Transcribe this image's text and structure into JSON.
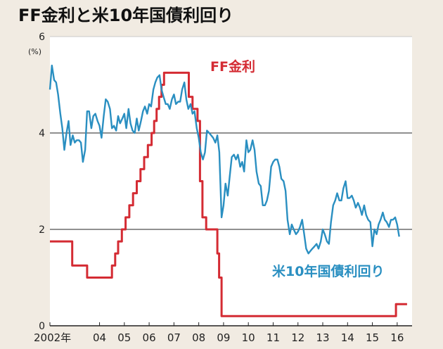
{
  "chart_data": {
    "type": "line",
    "title": "FF金利と米10年国債利回り",
    "unit_label": "(%)",
    "ylim": [
      0,
      6
    ],
    "y_ticks": [
      {
        "value": 0,
        "label": "0"
      },
      {
        "value": 2,
        "label": "2"
      },
      {
        "value": 4,
        "label": "4"
      },
      {
        "value": 6,
        "label": "6"
      }
    ],
    "xlim": [
      2002.0,
      2016.6
    ],
    "x_ticks": [
      {
        "value": 2002.0,
        "label": "2002年"
      },
      {
        "value": 2004.0,
        "label": "04"
      },
      {
        "value": 2005.0,
        "label": "05"
      },
      {
        "value": 2006.0,
        "label": "06"
      },
      {
        "value": 2007.0,
        "label": "07"
      },
      {
        "value": 2008.0,
        "label": "08"
      },
      {
        "value": 2009.0,
        "label": "09"
      },
      {
        "value": 2010.0,
        "label": "10"
      },
      {
        "value": 2011.0,
        "label": "11"
      },
      {
        "value": 2012.0,
        "label": "12"
      },
      {
        "value": 2013.0,
        "label": "13"
      },
      {
        "value": 2014.0,
        "label": "14"
      },
      {
        "value": 2015.0,
        "label": "15"
      },
      {
        "value": 2016.0,
        "label": "16"
      }
    ],
    "series": [
      {
        "name": "FF金利",
        "color": "#d42b33",
        "step": true,
        "points": [
          [
            2002.0,
            1.75
          ],
          [
            2002.9,
            1.75
          ],
          [
            2002.9,
            1.25
          ],
          [
            2003.5,
            1.25
          ],
          [
            2003.5,
            1.0
          ],
          [
            2004.5,
            1.0
          ],
          [
            2004.5,
            1.25
          ],
          [
            2004.63,
            1.25
          ],
          [
            2004.63,
            1.5
          ],
          [
            2004.75,
            1.5
          ],
          [
            2004.75,
            1.75
          ],
          [
            2004.9,
            1.75
          ],
          [
            2004.9,
            2.0
          ],
          [
            2005.05,
            2.0
          ],
          [
            2005.05,
            2.25
          ],
          [
            2005.2,
            2.25
          ],
          [
            2005.2,
            2.5
          ],
          [
            2005.35,
            2.5
          ],
          [
            2005.35,
            2.75
          ],
          [
            2005.5,
            2.75
          ],
          [
            2005.5,
            3.0
          ],
          [
            2005.65,
            3.0
          ],
          [
            2005.65,
            3.25
          ],
          [
            2005.8,
            3.25
          ],
          [
            2005.8,
            3.5
          ],
          [
            2005.95,
            3.5
          ],
          [
            2005.95,
            3.75
          ],
          [
            2006.1,
            3.75
          ],
          [
            2006.1,
            4.0
          ],
          [
            2006.2,
            4.0
          ],
          [
            2006.2,
            4.25
          ],
          [
            2006.3,
            4.25
          ],
          [
            2006.3,
            4.5
          ],
          [
            2006.4,
            4.5
          ],
          [
            2006.4,
            4.75
          ],
          [
            2006.5,
            4.75
          ],
          [
            2006.5,
            5.0
          ],
          [
            2006.6,
            5.0
          ],
          [
            2006.6,
            5.25
          ],
          [
            2007.6,
            5.25
          ],
          [
            2007.6,
            4.75
          ],
          [
            2007.75,
            4.75
          ],
          [
            2007.75,
            4.5
          ],
          [
            2007.95,
            4.5
          ],
          [
            2007.95,
            4.25
          ],
          [
            2008.05,
            4.25
          ],
          [
            2008.05,
            3.0
          ],
          [
            2008.15,
            3.0
          ],
          [
            2008.15,
            2.25
          ],
          [
            2008.3,
            2.25
          ],
          [
            2008.3,
            2.0
          ],
          [
            2008.75,
            2.0
          ],
          [
            2008.75,
            1.5
          ],
          [
            2008.82,
            1.5
          ],
          [
            2008.82,
            1.0
          ],
          [
            2008.92,
            1.0
          ],
          [
            2008.92,
            0.2
          ],
          [
            2015.95,
            0.2
          ],
          [
            2015.95,
            0.45
          ],
          [
            2016.4,
            0.45
          ]
        ]
      },
      {
        "name": "米10年国債利回り",
        "color": "#2a8fc1",
        "step": false,
        "points": [
          [
            2002.0,
            4.9
          ],
          [
            2002.08,
            5.4
          ],
          [
            2002.17,
            5.1
          ],
          [
            2002.25,
            5.05
          ],
          [
            2002.33,
            4.8
          ],
          [
            2002.42,
            4.4
          ],
          [
            2002.5,
            4.1
          ],
          [
            2002.58,
            3.65
          ],
          [
            2002.67,
            4.0
          ],
          [
            2002.75,
            4.25
          ],
          [
            2002.83,
            3.75
          ],
          [
            2002.92,
            3.95
          ],
          [
            2003.0,
            3.8
          ],
          [
            2003.08,
            3.85
          ],
          [
            2003.17,
            3.85
          ],
          [
            2003.25,
            3.8
          ],
          [
            2003.33,
            3.4
          ],
          [
            2003.42,
            3.65
          ],
          [
            2003.5,
            4.45
          ],
          [
            2003.58,
            4.45
          ],
          [
            2003.67,
            4.1
          ],
          [
            2003.75,
            4.35
          ],
          [
            2003.83,
            4.4
          ],
          [
            2003.92,
            4.25
          ],
          [
            2004.0,
            4.15
          ],
          [
            2004.08,
            3.9
          ],
          [
            2004.17,
            4.35
          ],
          [
            2004.25,
            4.7
          ],
          [
            2004.33,
            4.65
          ],
          [
            2004.42,
            4.5
          ],
          [
            2004.5,
            4.1
          ],
          [
            2004.58,
            4.15
          ],
          [
            2004.67,
            4.05
          ],
          [
            2004.75,
            4.35
          ],
          [
            2004.83,
            4.2
          ],
          [
            2004.92,
            4.3
          ],
          [
            2005.0,
            4.4
          ],
          [
            2005.08,
            4.1
          ],
          [
            2005.17,
            4.5
          ],
          [
            2005.25,
            4.2
          ],
          [
            2005.33,
            4.05
          ],
          [
            2005.42,
            4.0
          ],
          [
            2005.5,
            4.3
          ],
          [
            2005.58,
            4.05
          ],
          [
            2005.67,
            4.25
          ],
          [
            2005.75,
            4.45
          ],
          [
            2005.83,
            4.55
          ],
          [
            2005.92,
            4.4
          ],
          [
            2006.0,
            4.6
          ],
          [
            2006.08,
            4.55
          ],
          [
            2006.17,
            4.9
          ],
          [
            2006.25,
            5.05
          ],
          [
            2006.33,
            5.15
          ],
          [
            2006.42,
            5.2
          ],
          [
            2006.5,
            4.9
          ],
          [
            2006.58,
            4.75
          ],
          [
            2006.67,
            4.6
          ],
          [
            2006.75,
            4.6
          ],
          [
            2006.83,
            4.5
          ],
          [
            2006.92,
            4.7
          ],
          [
            2007.0,
            4.8
          ],
          [
            2007.08,
            4.6
          ],
          [
            2007.17,
            4.65
          ],
          [
            2007.25,
            4.65
          ],
          [
            2007.33,
            4.9
          ],
          [
            2007.42,
            5.05
          ],
          [
            2007.5,
            4.7
          ],
          [
            2007.58,
            4.5
          ],
          [
            2007.67,
            4.6
          ],
          [
            2007.75,
            4.4
          ],
          [
            2007.83,
            4.45
          ],
          [
            2007.92,
            4.1
          ],
          [
            2008.0,
            3.9
          ],
          [
            2008.08,
            3.6
          ],
          [
            2008.17,
            3.45
          ],
          [
            2008.25,
            3.6
          ],
          [
            2008.33,
            4.05
          ],
          [
            2008.42,
            4.0
          ],
          [
            2008.5,
            3.95
          ],
          [
            2008.58,
            3.9
          ],
          [
            2008.67,
            3.8
          ],
          [
            2008.75,
            3.95
          ],
          [
            2008.83,
            3.6
          ],
          [
            2008.92,
            2.25
          ],
          [
            2009.0,
            2.5
          ],
          [
            2009.08,
            2.95
          ],
          [
            2009.17,
            2.7
          ],
          [
            2009.25,
            3.1
          ],
          [
            2009.33,
            3.5
          ],
          [
            2009.42,
            3.55
          ],
          [
            2009.5,
            3.45
          ],
          [
            2009.58,
            3.55
          ],
          [
            2009.67,
            3.3
          ],
          [
            2009.75,
            3.4
          ],
          [
            2009.83,
            3.2
          ],
          [
            2009.92,
            3.85
          ],
          [
            2010.0,
            3.6
          ],
          [
            2010.08,
            3.65
          ],
          [
            2010.17,
            3.85
          ],
          [
            2010.25,
            3.65
          ],
          [
            2010.33,
            3.2
          ],
          [
            2010.42,
            2.95
          ],
          [
            2010.5,
            2.9
          ],
          [
            2010.58,
            2.5
          ],
          [
            2010.67,
            2.5
          ],
          [
            2010.75,
            2.6
          ],
          [
            2010.83,
            2.8
          ],
          [
            2010.92,
            3.3
          ],
          [
            2011.0,
            3.4
          ],
          [
            2011.08,
            3.45
          ],
          [
            2011.17,
            3.45
          ],
          [
            2011.25,
            3.3
          ],
          [
            2011.33,
            3.05
          ],
          [
            2011.42,
            3.0
          ],
          [
            2011.5,
            2.8
          ],
          [
            2011.58,
            2.2
          ],
          [
            2011.67,
            1.9
          ],
          [
            2011.75,
            2.1
          ],
          [
            2011.83,
            2.0
          ],
          [
            2011.92,
            1.9
          ],
          [
            2012.0,
            1.95
          ],
          [
            2012.08,
            2.05
          ],
          [
            2012.17,
            2.2
          ],
          [
            2012.25,
            1.9
          ],
          [
            2012.33,
            1.6
          ],
          [
            2012.42,
            1.5
          ],
          [
            2012.5,
            1.55
          ],
          [
            2012.58,
            1.6
          ],
          [
            2012.67,
            1.65
          ],
          [
            2012.75,
            1.7
          ],
          [
            2012.83,
            1.6
          ],
          [
            2012.92,
            1.75
          ],
          [
            2013.0,
            2.0
          ],
          [
            2013.08,
            1.9
          ],
          [
            2013.17,
            1.75
          ],
          [
            2013.25,
            1.7
          ],
          [
            2013.33,
            2.15
          ],
          [
            2013.42,
            2.5
          ],
          [
            2013.5,
            2.6
          ],
          [
            2013.58,
            2.75
          ],
          [
            2013.67,
            2.6
          ],
          [
            2013.75,
            2.6
          ],
          [
            2013.83,
            2.85
          ],
          [
            2013.92,
            3.0
          ],
          [
            2014.0,
            2.65
          ],
          [
            2014.08,
            2.65
          ],
          [
            2014.17,
            2.7
          ],
          [
            2014.25,
            2.6
          ],
          [
            2014.33,
            2.45
          ],
          [
            2014.42,
            2.55
          ],
          [
            2014.5,
            2.45
          ],
          [
            2014.58,
            2.3
          ],
          [
            2014.67,
            2.5
          ],
          [
            2014.75,
            2.3
          ],
          [
            2014.83,
            2.2
          ],
          [
            2014.92,
            2.15
          ],
          [
            2015.0,
            1.65
          ],
          [
            2015.08,
            2.0
          ],
          [
            2015.17,
            1.9
          ],
          [
            2015.25,
            2.1
          ],
          [
            2015.33,
            2.2
          ],
          [
            2015.42,
            2.35
          ],
          [
            2015.5,
            2.2
          ],
          [
            2015.58,
            2.15
          ],
          [
            2015.67,
            2.05
          ],
          [
            2015.75,
            2.2
          ],
          [
            2015.83,
            2.2
          ],
          [
            2015.92,
            2.25
          ],
          [
            2016.0,
            2.1
          ],
          [
            2016.08,
            1.85
          ]
        ]
      }
    ],
    "annotations": {
      "ff_label": "FF金利",
      "t10_label": "米10年国債利回り"
    }
  }
}
